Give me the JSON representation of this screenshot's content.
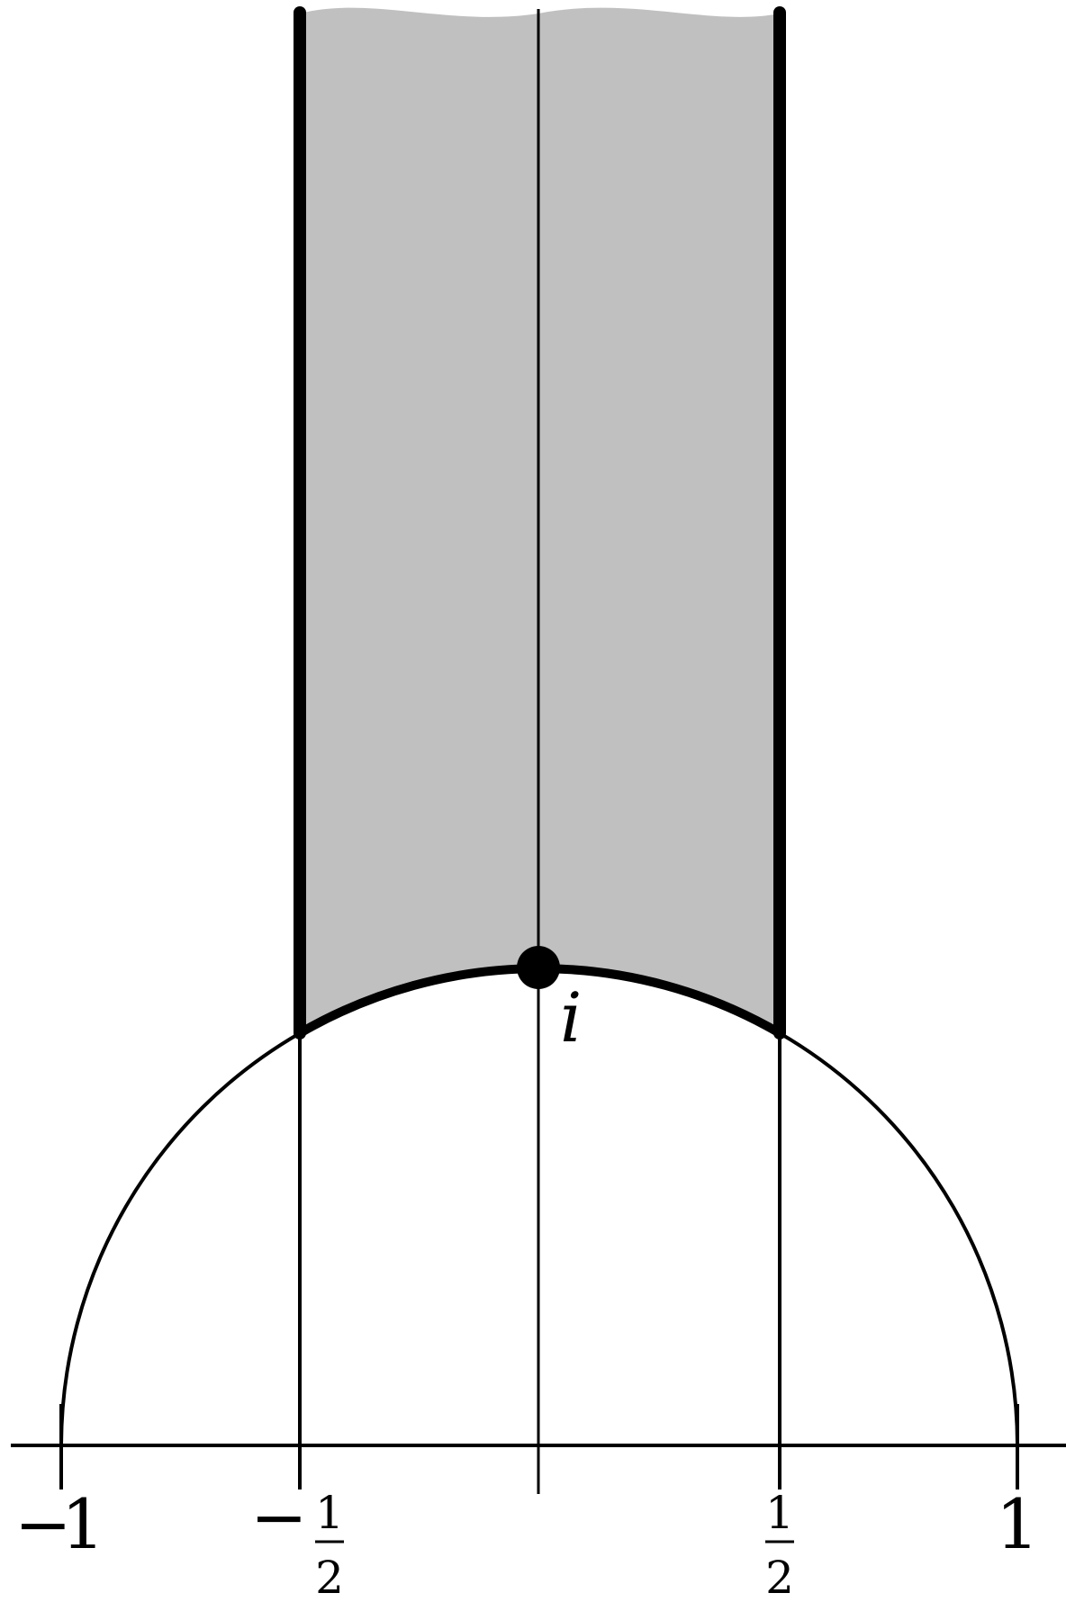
{
  "colors": {
    "background": "#ffffff",
    "region_fill": "#c0c0c0",
    "stroke": "#000000"
  },
  "region": {
    "x_min": -0.5,
    "x_max": 0.5,
    "lower_boundary": "unit circle arc",
    "extends_upward": true
  },
  "point": {
    "label": "i",
    "x": 0,
    "y": 1
  },
  "unit_circle": {
    "center_x": 0,
    "radius": 1
  },
  "x_axis": {
    "ticks": [
      {
        "value": -1,
        "sign": "−",
        "whole": "1"
      },
      {
        "value": -0.5,
        "sign": "−",
        "numerator": "1",
        "denominator": "2"
      },
      {
        "value": 0
      },
      {
        "value": 0.5,
        "sign": "",
        "numerator": "1",
        "denominator": "2"
      },
      {
        "value": 1,
        "sign": "",
        "whole": "1"
      }
    ]
  }
}
